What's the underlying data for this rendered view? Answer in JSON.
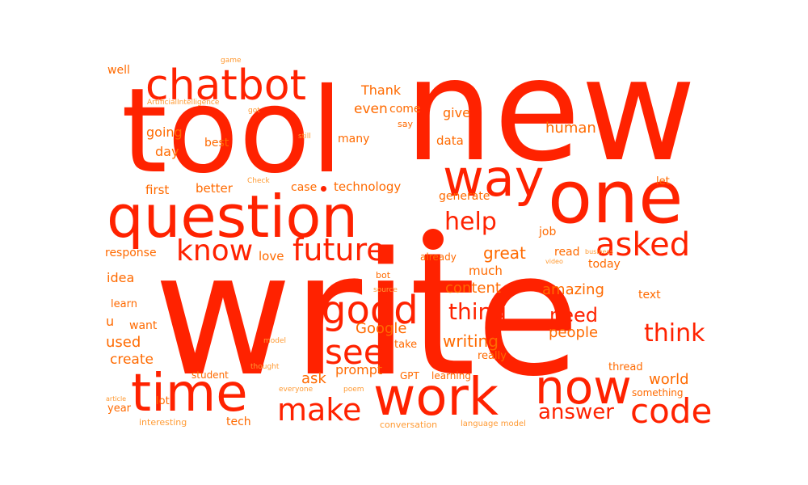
{
  "colors": {
    "primary": "#FF2200",
    "secondary": "#FF6A00",
    "tertiary": "#FF9A33",
    "background": "#FFFFFF"
  },
  "words": [
    {
      "text": "write",
      "tier": 1
    },
    {
      "text": "new",
      "tier": 1
    },
    {
      "text": "tool",
      "tier": 1
    },
    {
      "text": "one",
      "tier": 1
    },
    {
      "text": "question",
      "tier": 1
    },
    {
      "text": "way",
      "tier": 1
    },
    {
      "text": "work",
      "tier": 1
    },
    {
      "text": "time",
      "tier": 1
    },
    {
      "text": "now",
      "tier": 1
    },
    {
      "text": "chatbot",
      "tier": 1
    },
    {
      "text": "good",
      "tier": 1
    },
    {
      "text": "code",
      "tier": 1
    },
    {
      "text": "make",
      "tier": 1
    },
    {
      "text": "future",
      "tier": 1
    },
    {
      "text": "asked",
      "tier": 1
    },
    {
      "text": "know",
      "tier": 1
    },
    {
      "text": "see",
      "tier": 1
    },
    {
      "text": "help",
      "tier": 1
    },
    {
      "text": "think",
      "tier": 1
    },
    {
      "text": "thing",
      "tier": 1
    },
    {
      "text": "answer",
      "tier": 1
    },
    {
      "text": "need",
      "tier": 1
    },
    {
      "text": "writing",
      "tier": 2
    },
    {
      "text": "Google",
      "tier": 2
    },
    {
      "text": "great",
      "tier": 2
    },
    {
      "text": "content",
      "tier": 2
    },
    {
      "text": "human",
      "tier": 2
    },
    {
      "text": "amazing",
      "tier": 2
    },
    {
      "text": "people",
      "tier": 2
    },
    {
      "text": "world",
      "tier": 2
    },
    {
      "text": "used",
      "tier": 2
    },
    {
      "text": "create",
      "tier": 2
    },
    {
      "text": "going",
      "tier": 2
    },
    {
      "text": "day",
      "tier": 2
    },
    {
      "text": "better",
      "tier": 2
    },
    {
      "text": "first",
      "tier": 2
    },
    {
      "text": "technology",
      "tier": 2
    },
    {
      "text": "even",
      "tier": 2
    },
    {
      "text": "give",
      "tier": 2
    },
    {
      "text": "data",
      "tier": 2
    },
    {
      "text": "ask",
      "tier": 2
    },
    {
      "text": "prompt",
      "tier": 2
    },
    {
      "text": "Thank",
      "tier": 2
    },
    {
      "text": "love",
      "tier": 2
    },
    {
      "text": "much",
      "tier": 2
    },
    {
      "text": "response",
      "tier": 2
    },
    {
      "text": "idea",
      "tier": 2
    },
    {
      "text": "u",
      "tier": 2
    },
    {
      "text": "want",
      "tier": 2
    },
    {
      "text": "best",
      "tier": 2
    },
    {
      "text": "come",
      "tier": 2
    },
    {
      "text": "many",
      "tier": 2
    },
    {
      "text": "case",
      "tier": 2
    },
    {
      "text": "generate",
      "tier": 2
    },
    {
      "text": "job",
      "tier": 2
    },
    {
      "text": "read",
      "tier": 2
    },
    {
      "text": "today",
      "tier": 2
    },
    {
      "text": "text",
      "tier": 2
    },
    {
      "text": "thread",
      "tier": 2
    },
    {
      "text": "something",
      "tier": 2
    },
    {
      "text": "lot",
      "tier": 2
    },
    {
      "text": "year",
      "tier": 2
    },
    {
      "text": "tech",
      "tier": 2
    },
    {
      "text": "well",
      "tier": 2
    },
    {
      "text": "learn",
      "tier": 2
    },
    {
      "text": "let",
      "tier": 2
    },
    {
      "text": "really",
      "tier": 2
    },
    {
      "text": "take",
      "tier": 2
    },
    {
      "text": "GPT",
      "tier": 2
    },
    {
      "text": "learning",
      "tier": 2
    },
    {
      "text": "already",
      "tier": 2
    },
    {
      "text": "student",
      "tier": 2
    },
    {
      "text": "bot",
      "tier": 2
    },
    {
      "text": "say",
      "tier": 2
    },
    {
      "text": "interesting",
      "tier": 3
    },
    {
      "text": "conversation",
      "tier": 3
    },
    {
      "text": "language model",
      "tier": 3
    },
    {
      "text": "ArtificialIntelligence",
      "tier": 3
    },
    {
      "text": "game",
      "tier": 3
    },
    {
      "text": "got",
      "tier": 3
    },
    {
      "text": "still",
      "tier": 3
    },
    {
      "text": "Check",
      "tier": 3
    },
    {
      "text": "business",
      "tier": 3
    },
    {
      "text": "video",
      "tier": 3
    },
    {
      "text": "source",
      "tier": 3
    },
    {
      "text": "model",
      "tier": 3
    },
    {
      "text": "thought",
      "tier": 3
    },
    {
      "text": "everyone",
      "tier": 3
    },
    {
      "text": "poem",
      "tier": 3
    },
    {
      "text": "article",
      "tier": 3
    }
  ]
}
